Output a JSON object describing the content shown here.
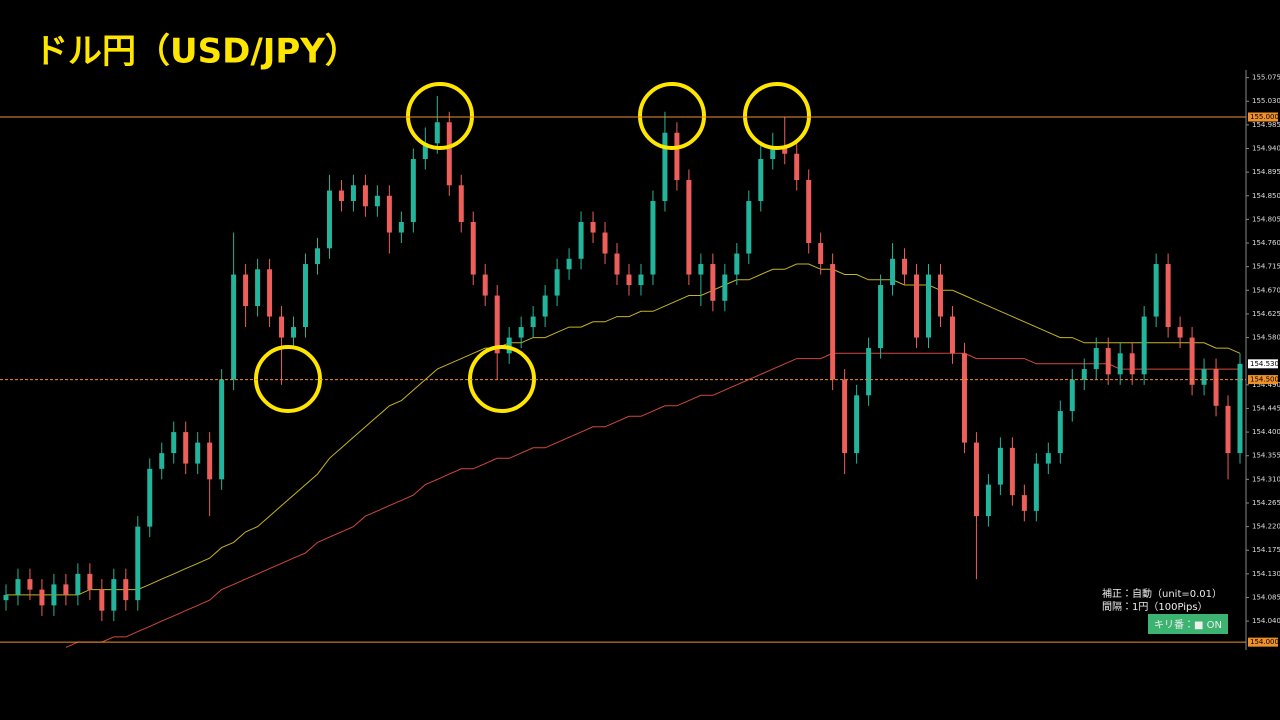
{
  "chart_data": {
    "type": "candlestick",
    "title": "ドル円（USD/JPY）",
    "ylim": [
      153.966,
      155.0895
    ],
    "yticks": [
      155.075,
      {
        "value": 155.03,
        "label": "155.030"
      },
      154.985,
      {
        "value": 154.94,
        "label": "154.940"
      },
      154.895,
      {
        "value": 154.85,
        "label": "154.850"
      },
      154.805,
      {
        "value": 154.76,
        "label": "154.760"
      },
      154.715,
      {
        "value": 154.67,
        "label": "154.670"
      },
      154.625,
      {
        "value": 154.58,
        "label": "154.580"
      },
      {
        "value": 154.49,
        "label": "154.490"
      },
      154.445,
      {
        "value": 154.4,
        "label": "154.400"
      },
      154.355,
      {
        "value": 154.31,
        "label": "154.310"
      },
      154.265,
      {
        "value": 154.22,
        "label": "154.220"
      },
      154.175,
      {
        "value": 154.13,
        "label": "154.130"
      },
      154.085,
      {
        "value": 154.04,
        "label": "154.040"
      }
    ],
    "up_color": "#22b59c",
    "down_color": "#ec5f5a",
    "open": [
      154.08,
      154.09,
      154.12,
      154.1,
      154.07,
      154.11,
      154.09,
      154.13,
      154.1,
      154.06,
      154.12,
      154.08,
      154.22,
      154.33,
      154.36,
      154.4,
      154.34,
      154.38,
      154.31,
      154.5,
      154.7,
      154.64,
      154.71,
      154.62,
      154.58,
      154.6,
      154.72,
      154.75,
      154.86,
      154.84,
      154.87,
      154.83,
      154.85,
      154.78,
      154.8,
      154.92,
      154.95,
      154.99,
      154.87,
      154.8,
      154.7,
      154.66,
      154.55,
      154.58,
      154.6,
      154.62,
      154.66,
      154.71,
      154.73,
      154.8,
      154.78,
      154.74,
      154.7,
      154.68,
      154.7,
      154.84,
      154.97,
      154.88,
      154.7,
      154.72,
      154.65,
      154.7,
      154.74,
      154.84,
      154.92,
      154.94,
      154.93,
      154.88,
      154.76,
      154.72,
      154.5,
      154.36,
      154.47,
      154.56,
      154.68,
      154.73,
      154.7,
      154.58,
      154.7,
      154.62,
      154.55,
      154.38,
      154.24,
      154.3,
      154.37,
      154.28,
      154.25,
      154.34,
      154.36,
      154.44,
      154.5,
      154.52,
      154.56,
      154.51,
      154.55,
      154.51,
      154.62,
      154.72,
      154.6,
      154.58,
      154.49,
      154.52,
      154.45,
      154.36
    ],
    "high": [
      154.11,
      154.14,
      154.14,
      154.12,
      154.13,
      154.13,
      154.15,
      154.15,
      154.12,
      154.14,
      154.14,
      154.24,
      154.35,
      154.38,
      154.42,
      154.42,
      154.4,
      154.4,
      154.52,
      154.78,
      154.72,
      154.73,
      154.73,
      154.64,
      154.62,
      154.74,
      154.77,
      154.89,
      154.88,
      154.89,
      154.89,
      154.87,
      154.87,
      154.82,
      154.94,
      154.98,
      155.04,
      155.01,
      154.89,
      154.82,
      154.72,
      154.68,
      154.6,
      154.62,
      154.64,
      154.68,
      154.73,
      154.75,
      154.82,
      154.82,
      154.8,
      154.76,
      154.72,
      154.72,
      154.86,
      155.01,
      154.99,
      154.9,
      154.74,
      154.74,
      154.72,
      154.76,
      154.86,
      154.95,
      154.97,
      155.0,
      154.95,
      154.9,
      154.78,
      154.74,
      154.52,
      154.49,
      154.58,
      154.7,
      154.76,
      154.75,
      154.72,
      154.72,
      154.72,
      154.64,
      154.57,
      154.4,
      154.32,
      154.39,
      154.39,
      154.3,
      154.36,
      154.38,
      154.46,
      154.52,
      154.54,
      154.58,
      154.58,
      154.57,
      154.57,
      154.64,
      154.74,
      154.74,
      154.62,
      154.6,
      154.54,
      154.54,
      154.47,
      154.55
    ],
    "low": [
      154.06,
      154.07,
      154.08,
      154.05,
      154.05,
      154.07,
      154.07,
      154.08,
      154.04,
      154.04,
      154.06,
      154.06,
      154.2,
      154.31,
      154.34,
      154.32,
      154.32,
      154.24,
      154.29,
      154.48,
      154.6,
      154.62,
      154.6,
      154.49,
      154.56,
      154.58,
      154.7,
      154.73,
      154.82,
      154.82,
      154.81,
      154.81,
      154.74,
      154.76,
      154.78,
      154.9,
      154.93,
      154.85,
      154.78,
      154.68,
      154.64,
      154.5,
      154.53,
      154.56,
      154.58,
      154.6,
      154.64,
      154.69,
      154.71,
      154.76,
      154.72,
      154.68,
      154.66,
      154.66,
      154.68,
      154.82,
      154.86,
      154.68,
      154.64,
      154.63,
      154.63,
      154.68,
      154.72,
      154.82,
      154.9,
      154.91,
      154.86,
      154.74,
      154.7,
      154.48,
      154.32,
      154.34,
      154.45,
      154.54,
      154.66,
      154.68,
      154.56,
      154.56,
      154.6,
      154.53,
      154.36,
      154.12,
      154.22,
      154.28,
      154.26,
      154.23,
      154.23,
      154.32,
      154.34,
      154.42,
      154.48,
      154.5,
      154.49,
      154.49,
      154.49,
      154.49,
      154.6,
      154.58,
      154.56,
      154.47,
      154.47,
      154.43,
      154.31,
      154.34
    ],
    "close": [
      154.09,
      154.12,
      154.1,
      154.07,
      154.11,
      154.09,
      154.13,
      154.1,
      154.06,
      154.12,
      154.08,
      154.22,
      154.33,
      154.36,
      154.4,
      154.34,
      154.38,
      154.31,
      154.5,
      154.7,
      154.64,
      154.71,
      154.62,
      154.58,
      154.6,
      154.72,
      154.75,
      154.86,
      154.84,
      154.87,
      154.83,
      154.85,
      154.78,
      154.8,
      154.92,
      154.95,
      154.99,
      154.87,
      154.8,
      154.7,
      154.66,
      154.55,
      154.58,
      154.6,
      154.62,
      154.66,
      154.71,
      154.73,
      154.8,
      154.78,
      154.74,
      154.7,
      154.68,
      154.7,
      154.84,
      154.97,
      154.88,
      154.7,
      154.72,
      154.65,
      154.7,
      154.74,
      154.84,
      154.92,
      154.94,
      154.93,
      154.88,
      154.76,
      154.72,
      154.5,
      154.36,
      154.47,
      154.56,
      154.68,
      154.73,
      154.7,
      154.58,
      154.7,
      154.62,
      154.55,
      154.38,
      154.24,
      154.3,
      154.37,
      154.28,
      154.25,
      154.34,
      154.36,
      154.44,
      154.5,
      154.52,
      154.56,
      154.51,
      154.55,
      154.51,
      154.62,
      154.72,
      154.6,
      154.58,
      154.49,
      154.52,
      154.45,
      154.36,
      154.53
    ],
    "lines": [
      {
        "color": "#c8b41e",
        "values": [
          154.09,
          154.09,
          154.09,
          154.09,
          154.09,
          154.09,
          154.09,
          154.1,
          154.1,
          154.1,
          154.1,
          154.1,
          154.11,
          154.12,
          154.13,
          154.14,
          154.15,
          154.16,
          154.18,
          154.19,
          154.21,
          154.22,
          154.24,
          154.26,
          154.28,
          154.3,
          154.32,
          154.35,
          154.37,
          154.39,
          154.41,
          154.43,
          154.45,
          154.46,
          154.48,
          154.5,
          154.52,
          154.53,
          154.54,
          154.55,
          154.56,
          154.56,
          154.57,
          154.57,
          154.58,
          154.58,
          154.59,
          154.6,
          154.6,
          154.61,
          154.61,
          154.62,
          154.62,
          154.63,
          154.63,
          154.64,
          154.65,
          154.66,
          154.66,
          154.67,
          154.68,
          154.69,
          154.69,
          154.7,
          154.71,
          154.71,
          154.72,
          154.72,
          154.71,
          154.71,
          154.7,
          154.7,
          154.69,
          154.69,
          154.69,
          154.68,
          154.68,
          154.68,
          154.67,
          154.67,
          154.66,
          154.65,
          154.64,
          154.63,
          154.62,
          154.61,
          154.6,
          154.59,
          154.58,
          154.58,
          154.57,
          154.57,
          154.57,
          154.57,
          154.57,
          154.57,
          154.57,
          154.57,
          154.57,
          154.57,
          154.57,
          154.56,
          154.56,
          154.55
        ]
      },
      {
        "color": "#d2493c",
        "values": [
          null,
          null,
          null,
          null,
          null,
          153.99,
          154.0,
          154.0,
          154.0,
          154.01,
          154.01,
          154.02,
          154.03,
          154.04,
          154.05,
          154.06,
          154.07,
          154.08,
          154.1,
          154.11,
          154.12,
          154.13,
          154.14,
          154.15,
          154.16,
          154.17,
          154.19,
          154.2,
          154.21,
          154.22,
          154.24,
          154.25,
          154.26,
          154.27,
          154.28,
          154.3,
          154.31,
          154.32,
          154.33,
          154.33,
          154.34,
          154.35,
          154.35,
          154.36,
          154.37,
          154.37,
          154.38,
          154.39,
          154.4,
          154.41,
          154.41,
          154.42,
          154.43,
          154.43,
          154.44,
          154.45,
          154.45,
          154.46,
          154.47,
          154.47,
          154.48,
          154.49,
          154.5,
          154.51,
          154.52,
          154.53,
          154.54,
          154.54,
          154.54,
          154.55,
          154.55,
          154.55,
          154.55,
          154.55,
          154.55,
          154.55,
          154.55,
          154.55,
          154.55,
          154.55,
          154.55,
          154.54,
          154.54,
          154.54,
          154.54,
          154.54,
          154.53,
          154.53,
          154.53,
          154.53,
          154.53,
          154.53,
          154.53,
          154.52,
          154.52,
          154.52,
          154.52,
          154.52,
          154.52,
          154.52,
          154.52,
          154.52,
          154.52,
          154.52
        ]
      }
    ],
    "price_lines": [
      {
        "value": 155.0,
        "label": "155.000",
        "color": "#f0902a",
        "style": "solid"
      },
      {
        "value": 154.0,
        "label": "154.000",
        "color": "#f0902a",
        "style": "solid"
      },
      {
        "value": 154.5,
        "label": "154.500",
        "color": "#f0902a",
        "style": "dashed"
      },
      {
        "value": 154.53,
        "label": "154.530",
        "color": "#ffffff",
        "style": "none"
      }
    ],
    "info": [
      "補正：自動（unit=0.01）",
      "間隔：1円（100Pips）"
    ],
    "button": "キリ番：■ ON"
  }
}
